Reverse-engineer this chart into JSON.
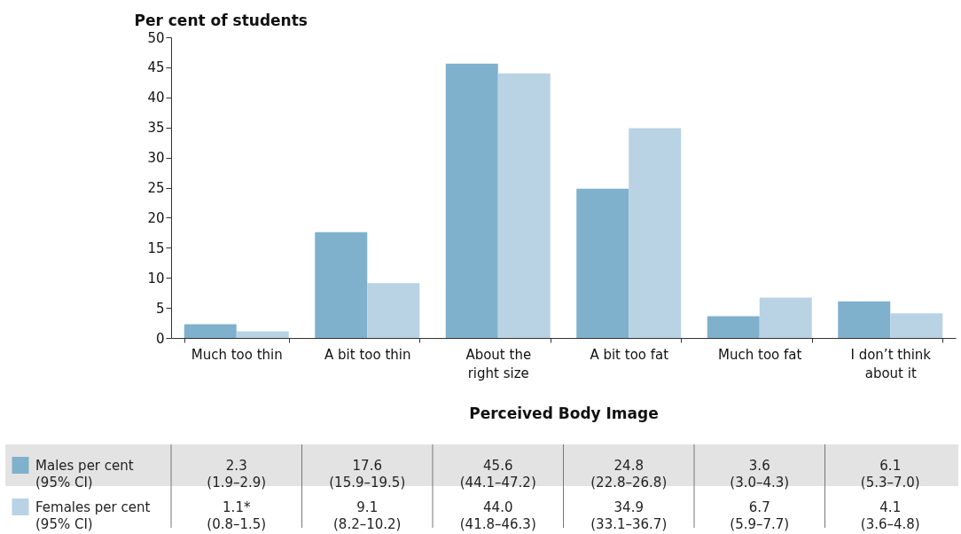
{
  "chart_data": {
    "type": "bar",
    "ylabel": "Per cent of students",
    "xlabel": "Perceived Body Image",
    "categories": [
      "Much too thin",
      "A bit too thin",
      "About the right size",
      "A bit too fat",
      "Much too fat",
      "I don’t think about it"
    ],
    "series": [
      {
        "name": "Males per cent (95% CI)",
        "color": "#7fb0cc",
        "values": [
          2.3,
          17.6,
          45.6,
          24.8,
          3.6,
          6.1
        ],
        "value_labels": [
          "2.3 (1.9–2.9)",
          "17.6 (15.9–19.5)",
          "45.6 (44.1–47.2)",
          "24.8 (22.8–26.8)",
          "3.6 (3.0–4.3)",
          "6.1 (5.3–7.0)"
        ]
      },
      {
        "name": "Females per cent (95% CI)",
        "color": "#b9d2e4",
        "values": [
          1.1,
          9.1,
          44.0,
          34.9,
          6.7,
          4.1
        ],
        "value_labels": [
          "1.1* (0.8–1.5)",
          "9.1 (8.2–10.2)",
          "44.0 (41.8–46.3)",
          "34.9 (33.1–36.7)",
          "6.7 (5.9–7.7)",
          "4.1 (3.6–4.8)"
        ]
      }
    ],
    "ylim": [
      0,
      50
    ],
    "yticks": [
      0,
      5,
      10,
      15,
      20,
      25,
      30,
      35,
      40,
      45,
      50
    ],
    "grid": false,
    "legend": "bottom"
  }
}
